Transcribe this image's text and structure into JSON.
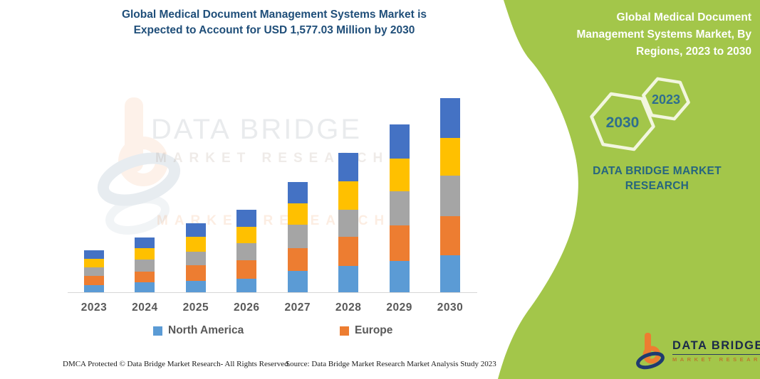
{
  "header": {
    "title_line1": "Global Medical Document Management Systems Market is",
    "title_line2": "Expected to Account for USD 1,577.03 Million by 2030"
  },
  "sidebar": {
    "heading": "Global Medical Document Management Systems Market, By Regions, 2023 to 2030",
    "hex_top_year": "2023",
    "hex_bottom_year": "2030",
    "brand_text": "DATA BRIDGE MARKET RESEARCH",
    "bg_color": "#a3c64a",
    "heading_color": "#ffffff",
    "brand_text_color": "#26657f",
    "hex_year_color": "#2e6e8e"
  },
  "watermark": {
    "line1": "DATA BRIDGE",
    "line2": "MARKET RESEARCH",
    "line3": "MARKET RESEARCH"
  },
  "logo": {
    "name": "DATA BRIDGE",
    "subtext": "MARKET RESEARCH",
    "mark_orange": "#ED7D31",
    "mark_blue": "#1f3b70"
  },
  "footer": {
    "left": "DMCA Protected © Data Bridge Market Research-  All Rights Reserved.",
    "right": "Source: Data Bridge Market Research  Market Analysis Study 2023"
  },
  "chart_data": {
    "type": "bar",
    "stacked": true,
    "title": "Global Medical Document Management Systems Market is Expected to Account for USD 1,577.03 Million by 2030",
    "xlabel": "",
    "ylabel": "",
    "unit": "USD Million (totals estimated; 2030 total anchored to 1577.03 from title)",
    "grid": false,
    "y_axis_visible": false,
    "legend_position": "bottom",
    "legend_visible": [
      "North America",
      "Europe"
    ],
    "categories": [
      "2023",
      "2024",
      "2025",
      "2026",
      "2027",
      "2028",
      "2029",
      "2030"
    ],
    "series": [
      {
        "name": "North America",
        "color": "#5B9BD5",
        "values": [
          58,
          83,
          92,
          112,
          175,
          214,
          256,
          300
        ]
      },
      {
        "name": "Europe",
        "color": "#ED7D31",
        "values": [
          77,
          85,
          125,
          148,
          183,
          235,
          285,
          318
        ]
      },
      {
        "name": "Unlabeled gray region",
        "color": "#A5A5A5",
        "values": [
          68,
          96,
          112,
          140,
          191,
          221,
          279,
          329
        ]
      },
      {
        "name": "Unlabeled yellow region",
        "color": "#FFC000",
        "values": [
          68,
          96,
          120,
          129,
          173,
          229,
          264,
          306
        ]
      },
      {
        "name": "Unlabeled dark blue region",
        "color": "#4472C4",
        "values": [
          69,
          83,
          112,
          140,
          173,
          233,
          279,
          324.03
        ]
      }
    ],
    "totals": [
      340,
      443,
      561,
      669,
      895,
      1132,
      1363,
      1577.03
    ]
  }
}
